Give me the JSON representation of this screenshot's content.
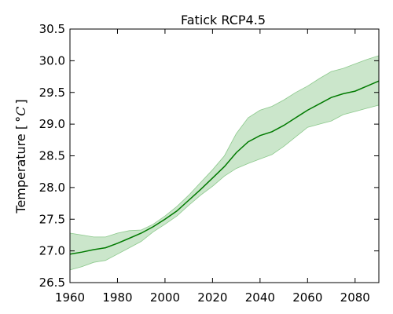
{
  "chart_data": {
    "type": "area",
    "title": "Fatick RCP4.5",
    "xlabel": "",
    "ylabel": "Temperature [",
    "ylabel_unit": "°C",
    "ylabel_close": "]",
    "xlim": [
      1960,
      2090
    ],
    "ylim": [
      26.5,
      30.5
    ],
    "grid": false,
    "x_ticks": [
      "1960",
      "1980",
      "2000",
      "2020",
      "2040",
      "2060",
      "2080"
    ],
    "y_ticks": [
      "26.5",
      "27.0",
      "27.5",
      "28.0",
      "28.5",
      "29.0",
      "29.5",
      "30.0",
      "30.5"
    ],
    "colors": {
      "line": "#007a00",
      "band": "#a8d5a8",
      "band_edge": "#8cc98c"
    },
    "series": [
      {
        "x": [
          1960,
          1965,
          1970,
          1975,
          1980,
          1985,
          1990,
          1995,
          2000,
          2005,
          2010,
          2015,
          2020,
          2025,
          2030,
          2035,
          2040,
          2045,
          2050,
          2055,
          2060,
          2065,
          2070,
          2075,
          2080,
          2085,
          2090
        ],
        "mean": [
          26.95,
          26.98,
          27.02,
          27.05,
          27.12,
          27.2,
          27.28,
          27.38,
          27.5,
          27.63,
          27.8,
          27.97,
          28.15,
          28.33,
          28.55,
          28.72,
          28.82,
          28.88,
          28.98,
          29.1,
          29.22,
          29.32,
          29.42,
          29.48,
          29.52,
          29.6,
          29.68
        ],
        "upper": [
          27.28,
          27.25,
          27.22,
          27.22,
          27.28,
          27.32,
          27.33,
          27.42,
          27.55,
          27.7,
          27.88,
          28.08,
          28.28,
          28.5,
          28.85,
          29.1,
          29.22,
          29.28,
          29.38,
          29.5,
          29.6,
          29.72,
          29.83,
          29.88,
          29.95,
          30.02,
          30.08
        ],
        "lower": [
          26.7,
          26.75,
          26.82,
          26.85,
          26.95,
          27.05,
          27.15,
          27.3,
          27.42,
          27.55,
          27.72,
          27.88,
          28.02,
          28.18,
          28.3,
          28.38,
          28.45,
          28.52,
          28.65,
          28.8,
          28.95,
          29.0,
          29.05,
          29.15,
          29.2,
          29.25,
          29.3
        ]
      }
    ]
  }
}
